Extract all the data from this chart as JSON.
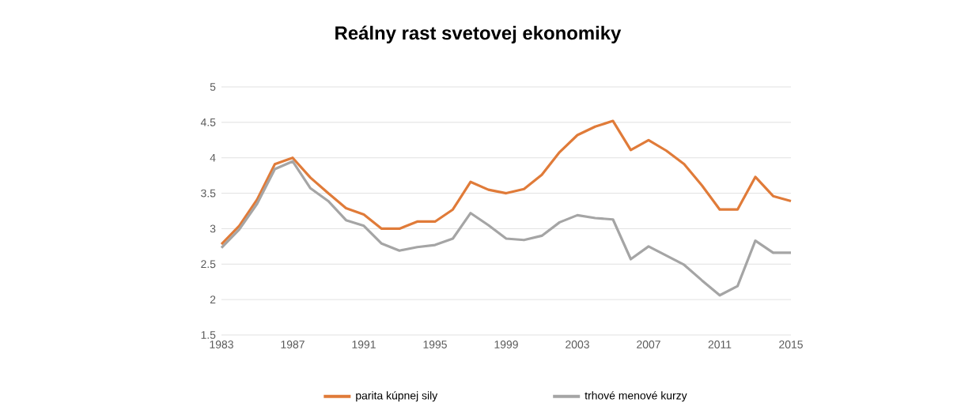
{
  "chart_data": {
    "type": "line",
    "title": "Reálny rast svetovej ekonomiky",
    "categories": [
      "1983",
      null,
      null,
      null,
      "1987",
      null,
      null,
      null,
      "1991",
      null,
      null,
      null,
      "1995",
      null,
      null,
      null,
      "1999",
      null,
      null,
      null,
      "2003",
      null,
      null,
      null,
      "2007",
      null,
      null,
      null,
      "2011",
      null,
      null,
      null,
      "2015"
    ],
    "series": [
      {
        "name": "parita kúpnej sily",
        "color": "#e07b39",
        "values": [
          2.78,
          3.04,
          3.41,
          3.91,
          4.0,
          3.72,
          3.5,
          3.29,
          3.2,
          3.0,
          3.0,
          3.1,
          3.1,
          3.27,
          3.66,
          3.55,
          3.5,
          3.56,
          3.76,
          4.08,
          4.32,
          4.44,
          4.52,
          4.11,
          4.25,
          4.1,
          3.91,
          3.61,
          3.27,
          3.27,
          3.73,
          3.46,
          3.39
        ]
      },
      {
        "name": "trhové menové kurzy",
        "color": "#a5a5a5",
        "values": [
          2.73,
          2.99,
          3.35,
          3.84,
          3.95,
          3.57,
          3.39,
          3.12,
          3.04,
          2.79,
          2.69,
          2.74,
          2.77,
          2.86,
          3.22,
          3.05,
          2.86,
          2.84,
          2.9,
          3.09,
          3.19,
          3.15,
          3.13,
          2.57,
          2.75,
          2.62,
          2.49,
          2.27,
          2.06,
          2.19,
          2.83,
          2.66,
          2.66
        ]
      }
    ],
    "ylim": [
      1.5,
      5
    ],
    "yticks": [
      1.5,
      2,
      2.5,
      3,
      3.5,
      4,
      4.5,
      5
    ],
    "grid": "y",
    "legend": "bottom",
    "marker": "none",
    "line_style": "solid"
  }
}
